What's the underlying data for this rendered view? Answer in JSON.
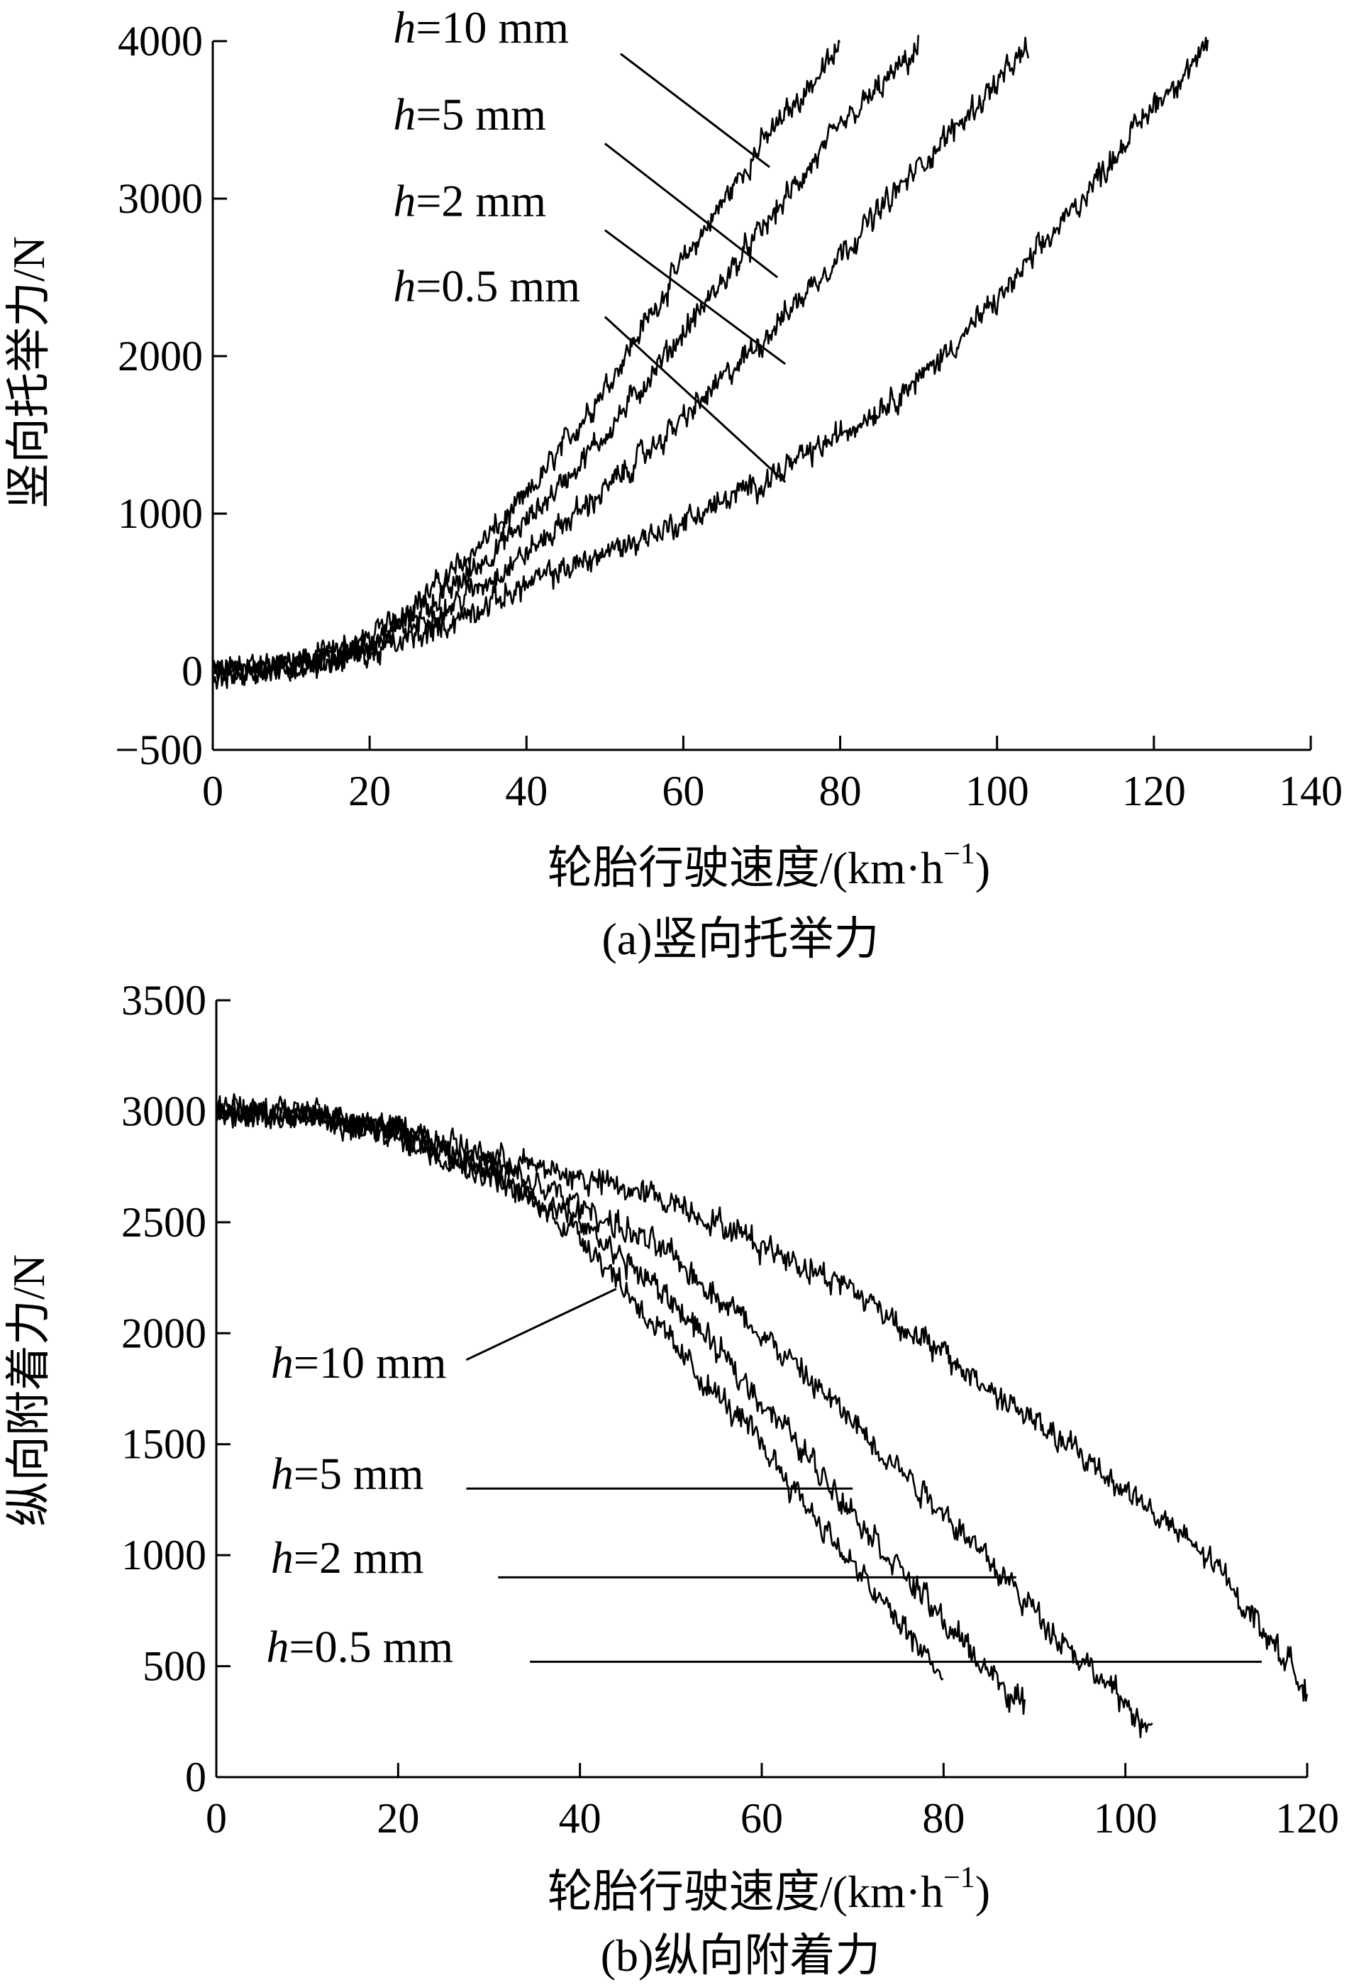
{
  "chart_data": [
    {
      "type": "line",
      "title": "",
      "caption": "(a)竖向托举力",
      "xlabel": "轮胎行驶速度/(km·h",
      "xlabel_sup": "−1",
      "xlabel_tail": ")",
      "ylabel": "竖向托举力/N",
      "xlim": [
        0,
        140
      ],
      "ylim": [
        -500,
        4000
      ],
      "xticks": [
        "0",
        "20",
        "40",
        "60",
        "80",
        "100",
        "120",
        "140"
      ],
      "yticks": [
        "−500",
        "0",
        "1000",
        "2000",
        "3000",
        "4000"
      ],
      "grid": false,
      "annotation_var": "h",
      "series": [
        {
          "name": "=10 mm",
          "label_x": 23,
          "label_y": 3990,
          "arrow": [
            [
              52,
              3920
            ],
            [
              71,
              3200
            ]
          ],
          "x": [
            0,
            5,
            10,
            20,
            30,
            40,
            50,
            60,
            70,
            80
          ],
          "values": [
            0,
            10,
            40,
            200,
            600,
            1100,
            1800,
            2600,
            3350,
            3950
          ]
        },
        {
          "name": "=5 mm",
          "label_x": 23,
          "label_y": 3440,
          "arrow": [
            [
              50,
              3350
            ],
            [
              72,
              2500
            ]
          ],
          "x": [
            0,
            5,
            10,
            20,
            30,
            40,
            50,
            60,
            70,
            80,
            90
          ],
          "values": [
            0,
            5,
            35,
            180,
            500,
            950,
            1500,
            2150,
            2800,
            3450,
            3950
          ]
        },
        {
          "name": "=2 mm",
          "label_x": 23,
          "label_y": 2890,
          "arrow": [
            [
              50,
              2800
            ],
            [
              73,
              1950
            ]
          ],
          "x": [
            0,
            5,
            10,
            20,
            30,
            40,
            50,
            60,
            70,
            80,
            90,
            104
          ],
          "values": [
            0,
            0,
            25,
            150,
            400,
            750,
            1150,
            1600,
            2100,
            2650,
            3200,
            3950
          ]
        },
        {
          "name": "=0.5 mm",
          "label_x": 23,
          "label_y": 2350,
          "arrow": [
            [
              50,
              2250
            ],
            [
              73,
              1200
            ]
          ],
          "x": [
            0,
            5,
            10,
            20,
            30,
            40,
            50,
            60,
            70,
            80,
            90,
            100,
            110,
            120,
            127
          ],
          "values": [
            0,
            0,
            20,
            100,
            300,
            550,
            750,
            950,
            1200,
            1500,
            1850,
            2350,
            2950,
            3600,
            3950
          ]
        }
      ]
    },
    {
      "type": "line",
      "title": "",
      "caption": "(b)纵向附着力",
      "xlabel": "轮胎行驶速度/(km·h",
      "xlabel_sup": "−1",
      "xlabel_tail": ")",
      "ylabel": "纵向附着力/N",
      "xlim": [
        0,
        120
      ],
      "ylim": [
        0,
        3500
      ],
      "xticks": [
        "0",
        "20",
        "40",
        "60",
        "80",
        "100",
        "120"
      ],
      "yticks": [
        "0",
        "500",
        "1000",
        "1500",
        "2000",
        "2500",
        "3000",
        "3500"
      ],
      "grid": false,
      "annotation_var": "h",
      "series": [
        {
          "name": "=10 mm",
          "label_x": 6,
          "label_y": 1800,
          "arrow": [
            [
              27.5,
              1880
            ],
            [
              44,
              2200
            ]
          ],
          "x": [
            0,
            10,
            20,
            30,
            40,
            50,
            60,
            70,
            80
          ],
          "values": [
            3000,
            2980,
            2900,
            2720,
            2450,
            1950,
            1500,
            950,
            450
          ]
        },
        {
          "name": "=5 mm",
          "label_x": 6,
          "label_y": 1300,
          "arrow": [
            [
              27.5,
              1300
            ],
            [
              70,
              1300
            ]
          ],
          "x": [
            0,
            10,
            20,
            30,
            40,
            50,
            60,
            70,
            80,
            89
          ],
          "values": [
            3000,
            2980,
            2900,
            2730,
            2500,
            2150,
            1700,
            1200,
            700,
            300
          ]
        },
        {
          "name": "=2 mm",
          "label_x": 6,
          "label_y": 920,
          "arrow": [
            [
              31,
              900
            ],
            [
              88,
              900
            ]
          ],
          "x": [
            0,
            10,
            20,
            30,
            40,
            50,
            60,
            70,
            80,
            90,
            103
          ],
          "values": [
            3000,
            2980,
            2910,
            2760,
            2580,
            2350,
            2000,
            1600,
            1200,
            750,
            200
          ]
        },
        {
          "name": "=0.5 mm",
          "label_x": 5.5,
          "label_y": 520,
          "arrow": [
            [
              34.5,
              520
            ],
            [
              115,
              520
            ]
          ],
          "x": [
            0,
            10,
            20,
            30,
            40,
            50,
            60,
            70,
            80,
            90,
            100,
            110,
            120
          ],
          "values": [
            3000,
            2980,
            2920,
            2800,
            2700,
            2600,
            2400,
            2200,
            1900,
            1600,
            1300,
            950,
            400
          ]
        }
      ]
    }
  ]
}
